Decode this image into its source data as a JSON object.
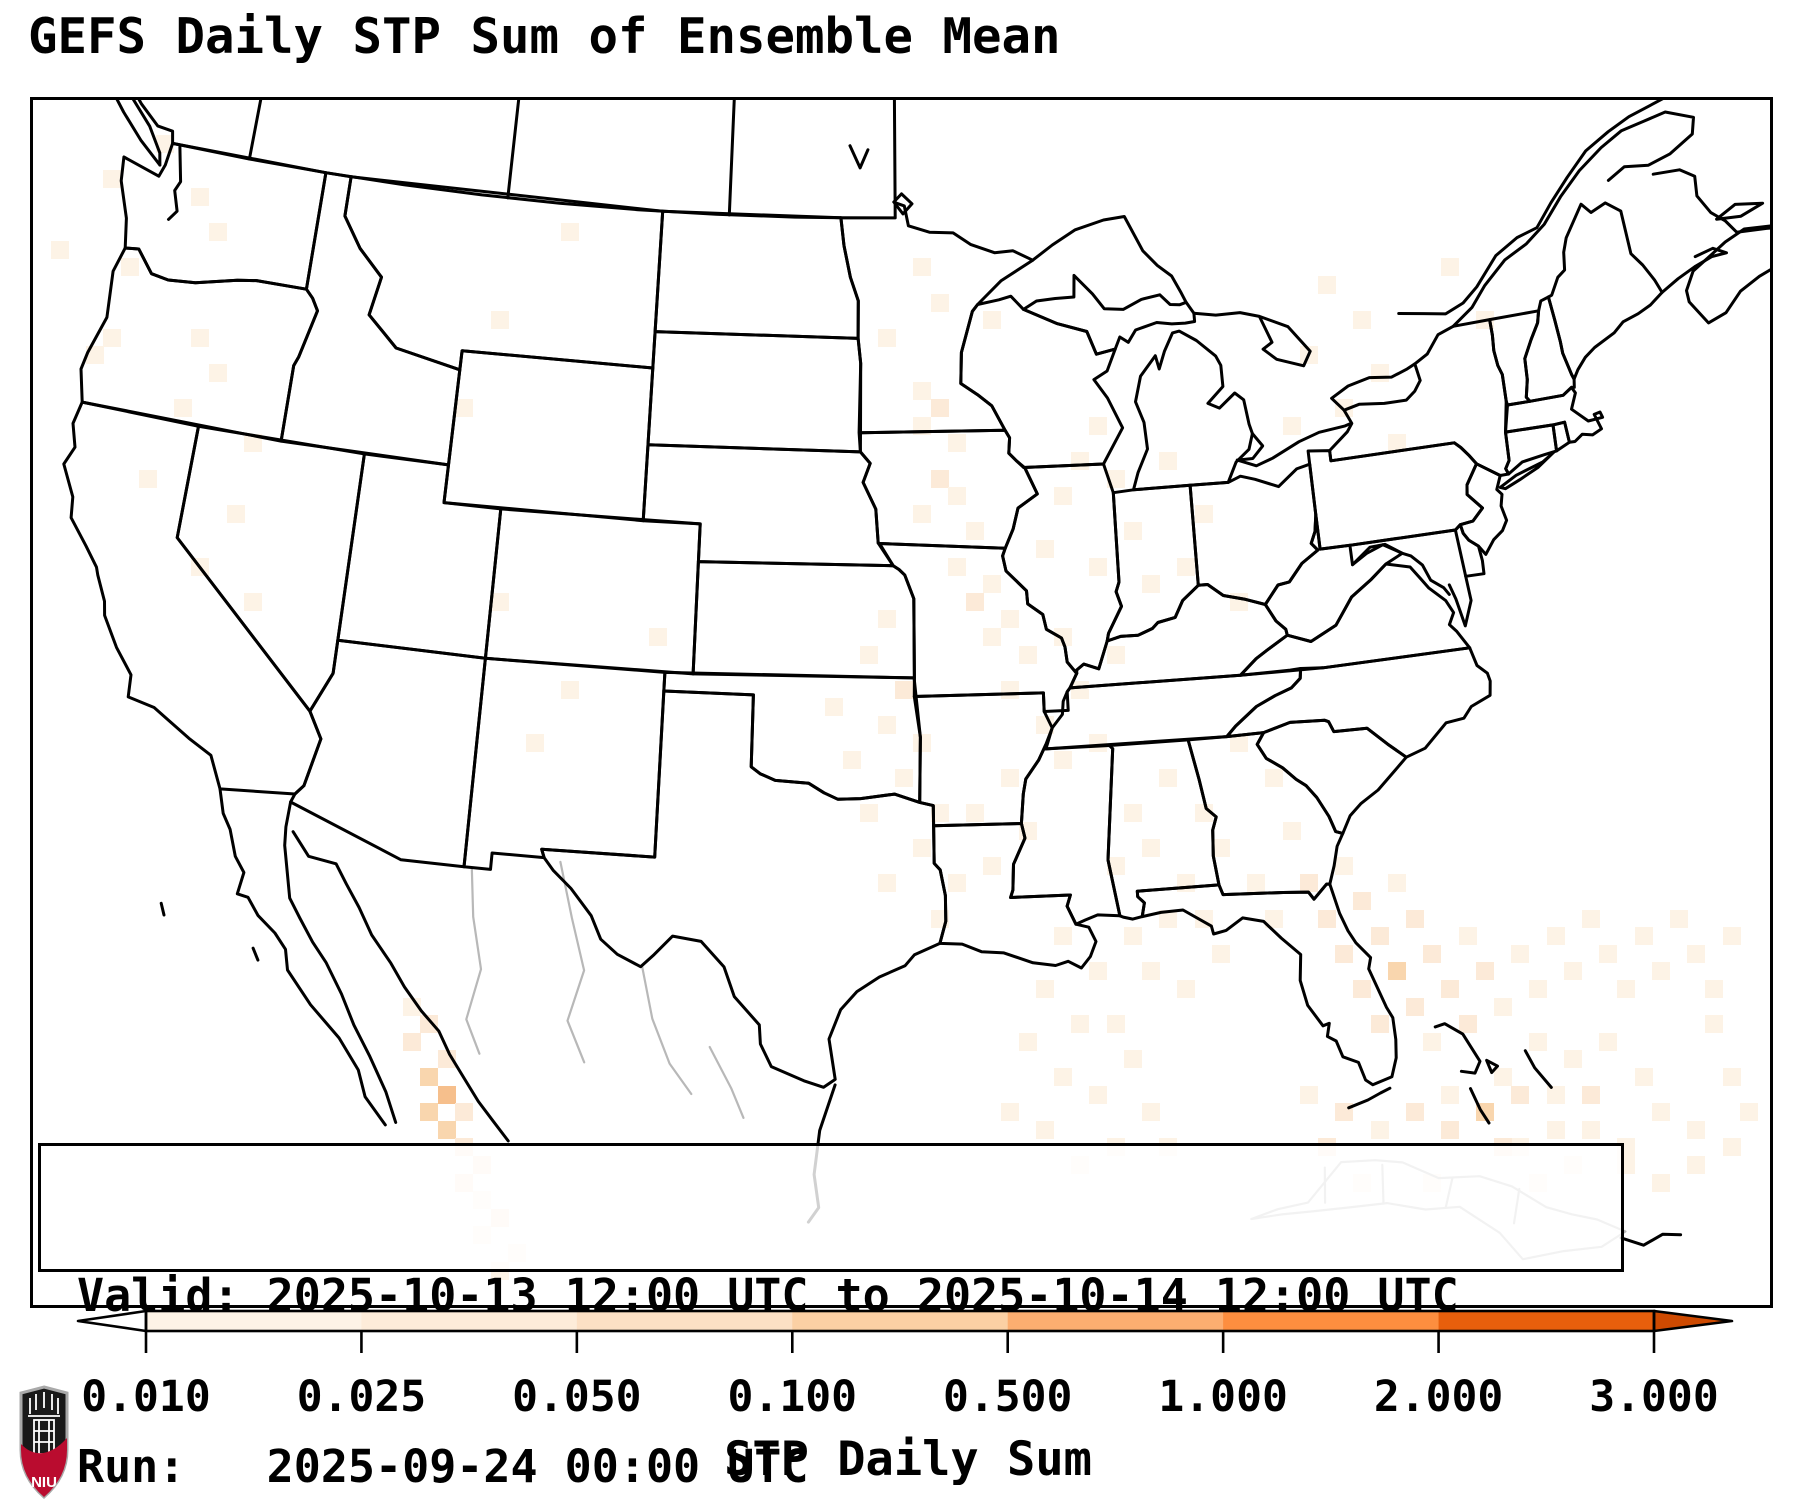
{
  "header": {
    "title": "GEFS Daily STP Sum of Ensemble Mean"
  },
  "info_box": {
    "line1": "Valid: 2025-10-13 12:00 UTC to 2025-10-14 12:00 UTC",
    "line2": "Run:   2025-09-24 00:00 UTC"
  },
  "colorbar": {
    "label": "STP Daily Sum",
    "ticks": [
      "0.010",
      "0.025",
      "0.050",
      "0.100",
      "0.500",
      "1.000",
      "2.000",
      "3.000"
    ],
    "segment_colors": [
      "#fdf3e6",
      "#fdecd9",
      "#fce0c4",
      "#fbd0a4",
      "#fcae70",
      "#fd8e3f",
      "#e85f0c"
    ],
    "under_color": "#ffffff",
    "over_color": "#ce4a01",
    "outline_color": "#000000"
  },
  "logo": {
    "text": "NIU",
    "shield_red": "#ba0c2f",
    "shield_black": "#191919"
  },
  "chart_data": {
    "type": "heatmap",
    "title": "GEFS Daily STP Sum of Ensemble Mean",
    "region": "Continental United States (Lambert conic view with Canada, Mexico, Cuba)",
    "colorbar_label": "STP Daily Sum",
    "colorbar_ticks": [
      0.01,
      0.025,
      0.05,
      0.1,
      0.5,
      1.0,
      2.0,
      3.0
    ],
    "colorbar_scale": "discrete, arrow extensions below 0.010 (white) and above 3.000 (dark orange)",
    "valid_period": "2025-10-13 12:00 UTC to 2025-10-14 12:00 UTC",
    "model_run": "2025-09-24 00:00 UTC",
    "cell_level_colors": {
      "1": "#fdf3e6",
      "2": "#fcead8",
      "3": "#f9d6ae",
      "4": "#f6bf8c"
    },
    "cell_size_px": 17.6,
    "shading_cells": [
      [
        1,
        8,
        1
      ],
      [
        4,
        4,
        1
      ],
      [
        5,
        9,
        1
      ],
      [
        7,
        2,
        1
      ],
      [
        9,
        5,
        1
      ],
      [
        10,
        7,
        1
      ],
      [
        3,
        14,
        1
      ],
      [
        4,
        13,
        1
      ],
      [
        9,
        13,
        1
      ],
      [
        10,
        15,
        1
      ],
      [
        8,
        17,
        1
      ],
      [
        12,
        19,
        1
      ],
      [
        6,
        21,
        1
      ],
      [
        11,
        23,
        1
      ],
      [
        9,
        26,
        1
      ],
      [
        12,
        28,
        1
      ],
      [
        30,
        7,
        1
      ],
      [
        26,
        12,
        1
      ],
      [
        24,
        17,
        1
      ],
      [
        50,
        9,
        1
      ],
      [
        51,
        11,
        1
      ],
      [
        54,
        12,
        1
      ],
      [
        48,
        13,
        1
      ],
      [
        50,
        16,
        1
      ],
      [
        51,
        17,
        2
      ],
      [
        50,
        18,
        1
      ],
      [
        52,
        19,
        1
      ],
      [
        51,
        21,
        2
      ],
      [
        52,
        22,
        1
      ],
      [
        50,
        23,
        1
      ],
      [
        53,
        24,
        1
      ],
      [
        52,
        26,
        1
      ],
      [
        54,
        27,
        1
      ],
      [
        53,
        28,
        2
      ],
      [
        55,
        29,
        1
      ],
      [
        54,
        30,
        1
      ],
      [
        56,
        31,
        1
      ],
      [
        55,
        33,
        1
      ],
      [
        57,
        25,
        1
      ],
      [
        58,
        22,
        1
      ],
      [
        59,
        20,
        1
      ],
      [
        60,
        18,
        1
      ],
      [
        61,
        21,
        1
      ],
      [
        62,
        24,
        1
      ],
      [
        60,
        26,
        1
      ],
      [
        63,
        27,
        1
      ],
      [
        58,
        30,
        1
      ],
      [
        59,
        33,
        1
      ],
      [
        61,
        31,
        1
      ],
      [
        57,
        35,
        1
      ],
      [
        58,
        37,
        1
      ],
      [
        60,
        36,
        1
      ],
      [
        55,
        38,
        1
      ],
      [
        53,
        40,
        1
      ],
      [
        56,
        41,
        1
      ],
      [
        54,
        43,
        1
      ],
      [
        64,
        20,
        1
      ],
      [
        66,
        23,
        1
      ],
      [
        65,
        26,
        1
      ],
      [
        68,
        28,
        1
      ],
      [
        48,
        29,
        1
      ],
      [
        47,
        31,
        1
      ],
      [
        49,
        33,
        2
      ],
      [
        48,
        35,
        1
      ],
      [
        50,
        36,
        1
      ],
      [
        46,
        37,
        1
      ],
      [
        49,
        38,
        1
      ],
      [
        47,
        40,
        1
      ],
      [
        45,
        34,
        1
      ],
      [
        51,
        40,
        1
      ],
      [
        50,
        42,
        1
      ],
      [
        52,
        44,
        1
      ],
      [
        48,
        44,
        1
      ],
      [
        51,
        46,
        1
      ],
      [
        73,
        10,
        1
      ],
      [
        75,
        12,
        1
      ],
      [
        72,
        14,
        1
      ],
      [
        76,
        15,
        1
      ],
      [
        74,
        17,
        1
      ],
      [
        71,
        18,
        1
      ],
      [
        77,
        19,
        1
      ],
      [
        80,
        9,
        1
      ],
      [
        82,
        12,
        1
      ],
      [
        35,
        30,
        1
      ],
      [
        26,
        28,
        1
      ],
      [
        30,
        33,
        1
      ],
      [
        28,
        36,
        1
      ],
      [
        62,
        40,
        1
      ],
      [
        63,
        42,
        1
      ],
      [
        65,
        44,
        1
      ],
      [
        61,
        43,
        1
      ],
      [
        64,
        46,
        1
      ],
      [
        66,
        46,
        1
      ],
      [
        62,
        47,
        1
      ],
      [
        67,
        48,
        1
      ],
      [
        63,
        49,
        1
      ],
      [
        65,
        50,
        1
      ],
      [
        64,
        38,
        1
      ],
      [
        66,
        40,
        1
      ],
      [
        68,
        36,
        1
      ],
      [
        70,
        38,
        1
      ],
      [
        67,
        42,
        1
      ],
      [
        69,
        44,
        1
      ],
      [
        71,
        41,
        1
      ],
      [
        72,
        44,
        2
      ],
      [
        70,
        46,
        1
      ],
      [
        73,
        46,
        2
      ],
      [
        74,
        43,
        1
      ],
      [
        75,
        45,
        2
      ],
      [
        76,
        47,
        2
      ],
      [
        74,
        48,
        2
      ],
      [
        77,
        44,
        1
      ],
      [
        78,
        46,
        2
      ],
      [
        75,
        50,
        2
      ],
      [
        77,
        49,
        3
      ],
      [
        78,
        51,
        2
      ],
      [
        76,
        52,
        2
      ],
      [
        79,
        48,
        2
      ],
      [
        80,
        50,
        2
      ],
      [
        79,
        53,
        1
      ],
      [
        81,
        47,
        1
      ],
      [
        82,
        49,
        2
      ],
      [
        83,
        51,
        1
      ],
      [
        81,
        52,
        2
      ],
      [
        84,
        48,
        1
      ],
      [
        85,
        50,
        1
      ],
      [
        86,
        47,
        1
      ],
      [
        87,
        49,
        1
      ],
      [
        88,
        46,
        1
      ],
      [
        89,
        48,
        1
      ],
      [
        90,
        50,
        1
      ],
      [
        91,
        47,
        1
      ],
      [
        92,
        49,
        1
      ],
      [
        93,
        46,
        1
      ],
      [
        94,
        48,
        1
      ],
      [
        95,
        50,
        1
      ],
      [
        96,
        47,
        1
      ],
      [
        85,
        53,
        1
      ],
      [
        87,
        54,
        1
      ],
      [
        89,
        53,
        1
      ],
      [
        91,
        55,
        1
      ],
      [
        83,
        55,
        1
      ],
      [
        80,
        56,
        1
      ],
      [
        86,
        56,
        1
      ],
      [
        92,
        57,
        1
      ],
      [
        88,
        58,
        1
      ],
      [
        84,
        59,
        1
      ],
      [
        90,
        60,
        1
      ],
      [
        94,
        58,
        1
      ],
      [
        96,
        55,
        1
      ],
      [
        95,
        52,
        1
      ],
      [
        58,
        47,
        1
      ],
      [
        60,
        49,
        1
      ],
      [
        57,
        50,
        1
      ],
      [
        59,
        52,
        1
      ],
      [
        61,
        52,
        1
      ],
      [
        56,
        53,
        1
      ],
      [
        62,
        54,
        1
      ],
      [
        58,
        55,
        1
      ],
      [
        60,
        56,
        1
      ],
      [
        63,
        57,
        1
      ],
      [
        55,
        57,
        1
      ],
      [
        57,
        58,
        1
      ],
      [
        61,
        59,
        1
      ],
      [
        64,
        59,
        1
      ],
      [
        59,
        60,
        1
      ],
      [
        72,
        56,
        1
      ],
      [
        74,
        57,
        2
      ],
      [
        76,
        58,
        1
      ],
      [
        73,
        59,
        2
      ],
      [
        78,
        57,
        2
      ],
      [
        80,
        58,
        2
      ],
      [
        82,
        57,
        3
      ],
      [
        84,
        56,
        2
      ],
      [
        83,
        59,
        2
      ],
      [
        86,
        58,
        1
      ],
      [
        88,
        56,
        2
      ],
      [
        87,
        60,
        1
      ],
      [
        90,
        59,
        1
      ],
      [
        85,
        61,
        1
      ],
      [
        79,
        61,
        1
      ],
      [
        75,
        61,
        1
      ],
      [
        92,
        61,
        1
      ],
      [
        94,
        60,
        1
      ],
      [
        96,
        59,
        1
      ],
      [
        97,
        57,
        1
      ],
      [
        21,
        51,
        1
      ],
      [
        22,
        52,
        2
      ],
      [
        21,
        53,
        2
      ],
      [
        23,
        54,
        2
      ],
      [
        22,
        55,
        3
      ],
      [
        23,
        56,
        4
      ],
      [
        22,
        57,
        3
      ],
      [
        24,
        57,
        2
      ],
      [
        23,
        58,
        3
      ],
      [
        24,
        59,
        2
      ],
      [
        25,
        60,
        2
      ],
      [
        24,
        61,
        2
      ],
      [
        25,
        62,
        1
      ],
      [
        26,
        63,
        2
      ],
      [
        25,
        64,
        1
      ],
      [
        27,
        65,
        1
      ],
      [
        26,
        66,
        1
      ]
    ]
  }
}
